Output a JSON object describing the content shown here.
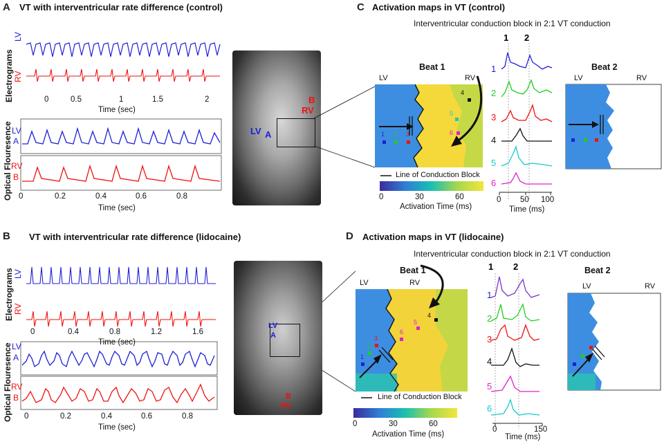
{
  "panelA": {
    "letter": "A",
    "title": "VT with interventricular rate difference (control)",
    "electrograms_label": "Electrograms",
    "optical_label": "Optical Flouresence",
    "lv": "LV",
    "rv": "RV",
    "lvA": "LV",
    "a": "A",
    "rvB": "RV",
    "b": "B",
    "egm_ticks": [
      "0",
      "0.5",
      "1",
      "1.5",
      "2"
    ],
    "egm_xlabel": "Time (sec)",
    "opt_ticks": [
      "0",
      "0.2",
      "0.4",
      "0.6",
      "0.8"
    ],
    "opt_xlabel": "Time (sec)",
    "heart": {
      "b": "B",
      "rv": "RV",
      "lv": "LV",
      "a": "A"
    }
  },
  "panelB": {
    "letter": "B",
    "title": "VT with interventricular rate difference (lidocaine)",
    "electrograms_label": "Electrograms",
    "optical_label": "Optical Flouresence",
    "lv": "LV",
    "rv": "RV",
    "lvA": "LV",
    "a": "A",
    "rvB": "RV",
    "b": "B",
    "egm_ticks": [
      "0",
      "0.4",
      "0.8",
      "1.2",
      "1.6"
    ],
    "egm_xlabel": "Time (sec)",
    "opt_ticks": [
      "0",
      "0.2",
      "0.4",
      "0.6",
      "0.8"
    ],
    "opt_xlabel": "Time (sec)",
    "heart": {
      "lv": "LV",
      "a": "A",
      "b": "B",
      "rv": "RV"
    }
  },
  "panelC": {
    "letter": "C",
    "title": "Activation maps in VT (control)",
    "subtitle": "Interventricular conduction block in 2:1 VT conduction",
    "beat1": "Beat 1",
    "beat2": "Beat 2",
    "lv": "LV",
    "rv": "RV",
    "col1": "1",
    "col2": "2",
    "traces": [
      "1",
      "2",
      "3",
      "4",
      "5",
      "6"
    ],
    "trace_ticks": [
      "0",
      "50",
      "100"
    ],
    "trace_xlabel": "Time (ms)",
    "legend_line": "Line of Conduction Block",
    "cbar_ticks": [
      "0",
      "30",
      "60"
    ],
    "cbar_label": "Activation Time (ms)",
    "map_electrodes": [
      "1",
      "2",
      "3",
      "4",
      "5",
      "6"
    ]
  },
  "panelD": {
    "letter": "D",
    "title": "Activation maps in VT (lidocaine)",
    "subtitle": "Interventricular conduction block in 2:1 VT conduction",
    "beat1": "Beat 1",
    "beat2": "Beat 2",
    "lv": "LV",
    "rv": "RV",
    "col1": "1",
    "col2": "2",
    "traces": [
      "1",
      "2",
      "3",
      "4",
      "5",
      "6"
    ],
    "trace_ticks": [
      "0",
      "150"
    ],
    "trace_xlabel": "Time (ms)",
    "legend_line": "Line of Conduction Block",
    "cbar_ticks": [
      "0",
      "30",
      "60"
    ],
    "cbar_label": "Activation Time (ms)",
    "map_electrodes": [
      "1",
      "2",
      "3",
      "4",
      "5",
      "6"
    ]
  },
  "colors": {
    "lv_blue": "#1f1fd6",
    "rv_red": "#e11",
    "e1": "#1f1fd6",
    "e2": "#22bb22",
    "e3": "#e11",
    "e4": "#111111",
    "e5": "#11cccc",
    "e6": "#dd22cc"
  }
}
